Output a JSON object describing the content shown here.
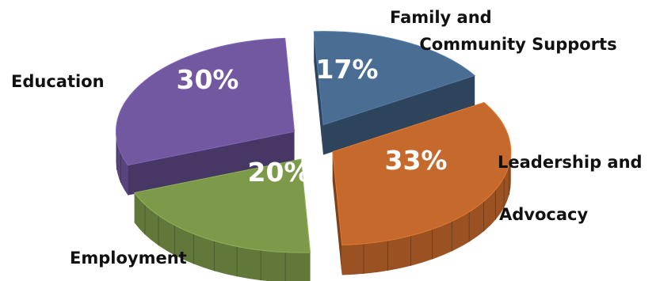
{
  "chart_data": {
    "type": "pie",
    "style": "3d-exploded",
    "categories": [
      "Family and Community Supports",
      "Leadership and Advocacy",
      "Employment",
      "Education"
    ],
    "values": [
      17,
      33,
      20,
      30
    ],
    "value_labels": [
      "17%",
      "33%",
      "20%",
      "30%"
    ],
    "label_lines": [
      [
        "Family and",
        "Community Supports"
      ],
      [
        "Leadership and",
        "Advocacy"
      ],
      [
        "Employment"
      ],
      [
        "Education"
      ]
    ],
    "colors": [
      "#4a6d94",
      "#c5692c",
      "#7d9a4b",
      "#7158a1"
    ],
    "legend": "none"
  }
}
